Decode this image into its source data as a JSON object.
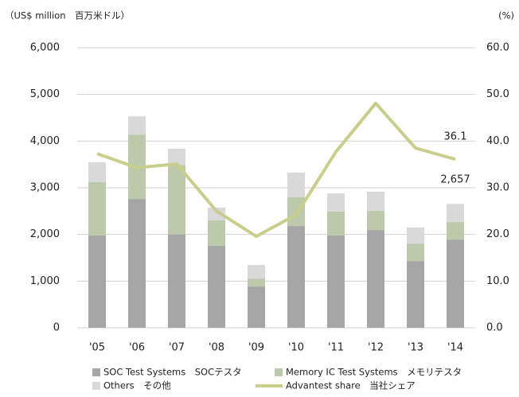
{
  "chart_data": {
    "type": "bar",
    "y_label": "（US$ million　百万米ドル）",
    "y2_label": "(%)",
    "categories": [
      "'05",
      "'06",
      "'07",
      "'08",
      "'09",
      "'10",
      "'11",
      "'12",
      "'13",
      "'14"
    ],
    "series": [
      {
        "name": "SOC Test Systems　SOCテスタ",
        "type": "bar",
        "color": "#a6a6a6",
        "values": [
          1980,
          2760,
          2000,
          1755,
          885,
          2180,
          1980,
          2095,
          1430,
          1890
        ]
      },
      {
        "name": "Memory IC Test Systems　メモリテスタ",
        "type": "bar",
        "color": "#bccaab",
        "values": [
          1140,
          1380,
          1490,
          545,
          170,
          615,
          510,
          410,
          375,
          375
        ]
      },
      {
        "name": "Others　その他",
        "type": "bar",
        "color": "#d9d9d9",
        "values": [
          425,
          390,
          345,
          275,
          290,
          530,
          390,
          410,
          345,
          392
        ]
      },
      {
        "name": "Advantest share　当社シェア",
        "type": "line",
        "axis": "y2",
        "color": "#c8cf8c",
        "values": [
          37.3,
          34.3,
          35.1,
          25.0,
          19.6,
          24.2,
          37.7,
          48.1,
          38.5,
          36.1
        ],
        "value_labels": [
          null,
          null,
          null,
          null,
          null,
          null,
          null,
          null,
          null,
          "36.1"
        ]
      }
    ],
    "annotations": [
      {
        "text": "2,657",
        "category": 9
      }
    ],
    "stacked": true,
    "ylim": [
      0,
      6000
    ],
    "yticks": [
      0,
      {
        "value": 1000,
        "label": "1,000"
      },
      {
        "value": 2000,
        "label": "2,000"
      },
      {
        "value": 3000,
        "label": "3,000"
      },
      {
        "value": 4000,
        "label": "4,000"
      },
      {
        "value": 5000,
        "label": "5,000"
      },
      {
        "value": 6000,
        "label": "6,000"
      }
    ],
    "y2lim": [
      0,
      60
    ],
    "y2ticks": [
      {
        "value": 0,
        "label": "0.0"
      },
      {
        "value": 10,
        "label": "10.0"
      },
      {
        "value": 20,
        "label": "20.0"
      },
      {
        "value": 30,
        "label": "30.0"
      },
      {
        "value": 40,
        "label": "40.0"
      },
      {
        "value": 50,
        "label": "50.0"
      },
      {
        "value": 60,
        "label": "60.0"
      }
    ],
    "grid": true,
    "legend": "bottom"
  }
}
